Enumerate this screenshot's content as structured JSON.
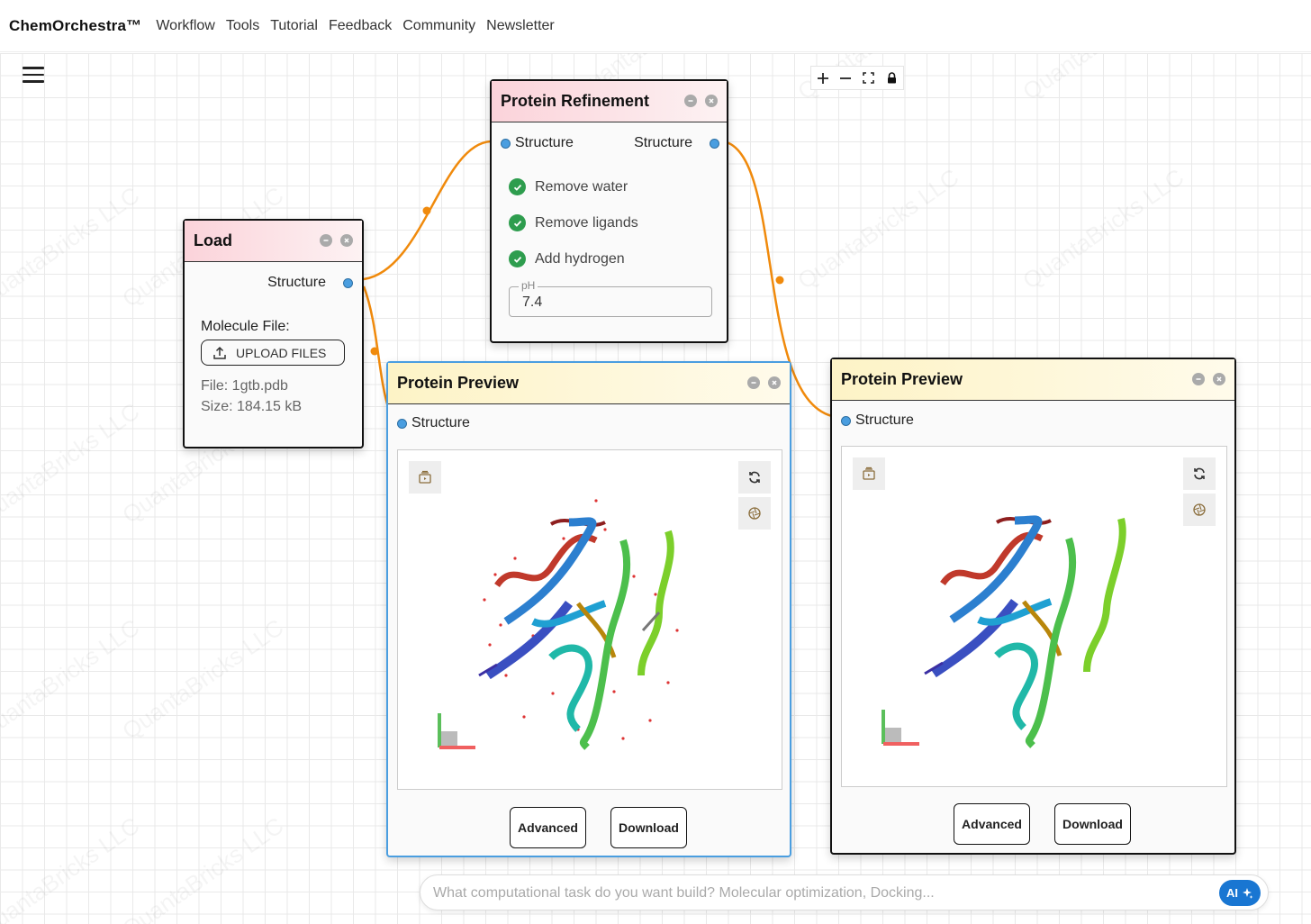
{
  "nav": {
    "brand": "ChemOrchestra™",
    "links": [
      "Workflow",
      "Tools",
      "Tutorial",
      "Feedback",
      "Community",
      "Newsletter"
    ]
  },
  "watermark_text": "QuantaBricks LLC",
  "zoom_controls": [
    "+",
    "−",
    "fit",
    "lock"
  ],
  "nodes": {
    "load": {
      "title": "Load",
      "output_port": "Structure",
      "molecule_label": "Molecule File:",
      "upload_label": "UPLOAD FILES",
      "file": "File: 1gtb.pdb",
      "size": "Size: 184.15 kB"
    },
    "refinement": {
      "title": "Protein Refinement",
      "input_port": "Structure",
      "output_port": "Structure",
      "options": [
        "Remove water",
        "Remove ligands",
        "Add hydrogen"
      ],
      "ph_label": "pH",
      "ph_value": "7.4"
    },
    "preview1": {
      "title": "Protein Preview",
      "input_port": "Structure",
      "advanced": "Advanced",
      "download": "Download"
    },
    "preview2": {
      "title": "Protein Preview",
      "input_port": "Structure",
      "advanced": "Advanced",
      "download": "Download"
    }
  },
  "chat": {
    "placeholder": "What computational task do you want build? Molecular optimization, Docking...",
    "ai_label": "AI"
  },
  "colors": {
    "edge": "#f08a0c",
    "port": "#4a9ee0",
    "check": "#2e9d4e",
    "ai_button": "#1976d2"
  }
}
